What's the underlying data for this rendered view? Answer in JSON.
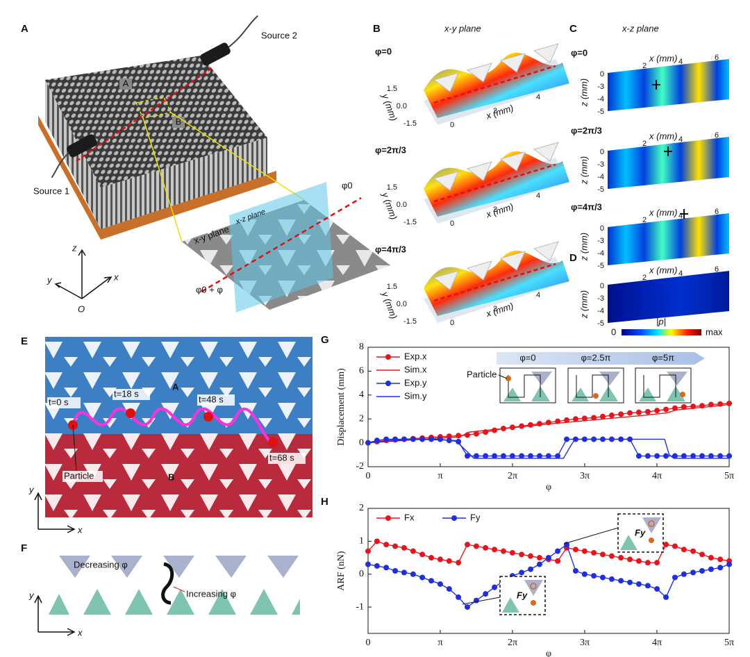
{
  "chart_data": [
    {
      "type": "line",
      "panel": "G",
      "ylabel": "Displacement (mm)",
      "xlabel": "φ",
      "xlim": [
        0,
        15.708
      ],
      "ylim": [
        -2,
        8
      ],
      "xticks": [
        0,
        {
          "value": 3.1416,
          "label": "π"
        },
        {
          "value": 6.2832,
          "label": "2π"
        },
        {
          "value": 9.4248,
          "label": "3π"
        },
        {
          "value": 12.5664,
          "label": "4π"
        },
        {
          "value": 15.708,
          "label": "5π"
        }
      ],
      "yticks": [
        -2,
        0,
        2,
        4,
        6,
        8
      ],
      "grid": false,
      "legend": "upper left",
      "series": [
        {
          "name": "Exp.x",
          "color": "#e8141c",
          "show_markers": true,
          "x": [
            0,
            0.39,
            0.79,
            1.18,
            1.57,
            1.96,
            2.36,
            2.75,
            3.14,
            3.53,
            3.93,
            4.32,
            4.71,
            5.11,
            5.5,
            5.89,
            6.28,
            6.68,
            7.07,
            7.46,
            7.85,
            8.25,
            8.64,
            9.03,
            9.42,
            9.82,
            10.21,
            10.6,
            11.0,
            11.39,
            11.78,
            12.17,
            12.57,
            12.96,
            13.35,
            13.74,
            14.14,
            14.53,
            14.92,
            15.32,
            15.71
          ],
          "values": [
            0,
            0.1,
            0.2,
            0.25,
            0.3,
            0.35,
            0.4,
            0.45,
            0.5,
            0.55,
            0.6,
            0.65,
            0.75,
            0.9,
            1.05,
            1.2,
            1.3,
            1.4,
            1.5,
            1.6,
            1.7,
            1.8,
            1.9,
            2.0,
            2.05,
            2.1,
            2.2,
            2.3,
            2.4,
            2.5,
            2.55,
            2.6,
            2.7,
            2.8,
            2.9,
            3.0,
            3.05,
            3.1,
            3.2,
            3.25,
            3.3
          ]
        },
        {
          "name": "Sim.x",
          "color": "#e8141c",
          "show_markers": false,
          "x": [
            0,
            4,
            4.4,
            8,
            12,
            13,
            13.4,
            15.71
          ],
          "values": [
            0,
            0.5,
            0.9,
            1.6,
            2.3,
            2.5,
            2.75,
            3.2
          ]
        },
        {
          "name": "Exp.y",
          "color": "#1f2fe0",
          "show_markers": true,
          "x": [
            0,
            0.39,
            0.79,
            1.18,
            1.57,
            1.96,
            2.36,
            2.75,
            3.14,
            3.53,
            3.93,
            4.32,
            4.71,
            5.11,
            5.5,
            5.89,
            6.28,
            6.68,
            7.07,
            7.46,
            7.85,
            8.25,
            8.64,
            9.03,
            9.42,
            9.82,
            10.21,
            10.6,
            11.0,
            11.39,
            11.78,
            12.17,
            12.57,
            12.96,
            13.35,
            13.74,
            14.14,
            14.53,
            14.92,
            15.32,
            15.71
          ],
          "values": [
            0,
            0.2,
            0.3,
            0.3,
            0.3,
            0.3,
            0.3,
            0.3,
            0.3,
            0.2,
            0.1,
            -1.1,
            -1.1,
            -1.1,
            -1.1,
            -1.1,
            -1.1,
            -1.1,
            -1.1,
            -1.1,
            -1.1,
            -1.1,
            0.3,
            0.3,
            0.3,
            0.3,
            0.3,
            0.3,
            0.3,
            0.3,
            -1.1,
            -1.1,
            -1.1,
            -1.1,
            -1.1,
            -1.1,
            -1.1,
            -1.1,
            -1.1,
            -1.1,
            -1.1
          ]
        },
        {
          "name": "Sim.y",
          "color": "#1f2fe0",
          "show_markers": false,
          "x": [
            0,
            2,
            3.8,
            4.4,
            4.6,
            8.5,
            8.8,
            9.0,
            12.9,
            13.1,
            13.3,
            15.71
          ],
          "values": [
            0,
            0.3,
            0.2,
            -0.9,
            -1.3,
            -1.3,
            -0.3,
            0.3,
            0.3,
            -1.0,
            -1.3,
            -1.3
          ]
        }
      ],
      "inset": {
        "states": [
          "φ=0",
          "φ=2.5π",
          "φ=5π"
        ],
        "particle": "Particle"
      }
    },
    {
      "type": "line",
      "panel": "H",
      "ylabel": "ARF (nN)",
      "xlabel": "φ",
      "xlim": [
        0,
        15.708
      ],
      "ylim": [
        -1.8,
        2
      ],
      "xticks": [
        0,
        {
          "value": 3.1416,
          "label": "π"
        },
        {
          "value": 6.2832,
          "label": "2π"
        },
        {
          "value": 9.4248,
          "label": "3π"
        },
        {
          "value": 12.5664,
          "label": "4π"
        },
        {
          "value": 15.708,
          "label": "5π"
        }
      ],
      "yticks": [
        -1,
        0,
        1,
        2
      ],
      "grid": false,
      "legend": "upper left",
      "legend_columns": 2,
      "series": [
        {
          "name": "Fx",
          "color": "#e8141c",
          "show_markers": true,
          "x": [
            0,
            0.39,
            0.79,
            1.18,
            1.57,
            1.96,
            2.36,
            2.75,
            3.14,
            3.53,
            3.93,
            4.32,
            4.71,
            5.11,
            5.5,
            5.89,
            6.28,
            6.68,
            7.07,
            7.46,
            7.85,
            8.25,
            8.64,
            9.03,
            9.42,
            9.82,
            10.21,
            10.6,
            11.0,
            11.39,
            11.78,
            12.17,
            12.57,
            12.96,
            13.35,
            13.74,
            14.14,
            14.53,
            14.92,
            15.32,
            15.71
          ],
          "values": [
            0.7,
            1.0,
            0.9,
            0.85,
            0.8,
            0.7,
            0.6,
            0.5,
            0.45,
            0.4,
            0.35,
            0.9,
            0.85,
            0.8,
            0.75,
            0.7,
            0.65,
            0.6,
            0.55,
            0.5,
            0.45,
            0.4,
            0.8,
            0.75,
            0.7,
            0.65,
            0.6,
            0.55,
            0.5,
            0.45,
            0.4,
            0.35,
            0.35,
            0.9,
            0.85,
            0.75,
            0.7,
            0.6,
            0.5,
            0.45,
            0.4
          ]
        },
        {
          "name": "Fy",
          "color": "#1f2fe0",
          "show_markers": true,
          "x": [
            0,
            0.39,
            0.79,
            1.18,
            1.57,
            1.96,
            2.36,
            2.75,
            3.14,
            3.53,
            3.93,
            4.32,
            4.71,
            5.11,
            5.5,
            5.89,
            6.28,
            6.68,
            7.07,
            7.46,
            7.85,
            8.25,
            8.64,
            9.03,
            9.42,
            9.82,
            10.21,
            10.6,
            11.0,
            11.39,
            11.78,
            12.17,
            12.57,
            12.96,
            13.35,
            13.74,
            14.14,
            14.53,
            14.92,
            15.32,
            15.71
          ],
          "values": [
            0.3,
            0.25,
            0.2,
            0.1,
            0.05,
            0,
            -0.1,
            -0.2,
            -0.3,
            -0.45,
            -0.7,
            -1.0,
            -0.8,
            -0.6,
            -0.4,
            -0.2,
            -0.05,
            0.05,
            0.15,
            0.3,
            0.5,
            0.7,
            0.9,
            0.1,
            0,
            -0.05,
            -0.1,
            -0.15,
            -0.2,
            -0.25,
            -0.3,
            -0.35,
            -0.45,
            -0.7,
            -0.1,
            0,
            0.05,
            0.1,
            0.15,
            0.2,
            0.3
          ]
        }
      ],
      "inset": {
        "force": "Fy"
      }
    }
  ],
  "panels": {
    "A": {
      "letter": "A",
      "source1": "Source 1",
      "source2": "Source 2",
      "box_a": "A",
      "box_b": "B",
      "xy_plane": "x-y plane",
      "xz_plane": "x-z plane",
      "phi0": "φ0",
      "phi0_plus": "φ0 + φ",
      "axes": [
        "z",
        "y",
        "x",
        "O"
      ]
    },
    "B": {
      "letter": "B",
      "title": "x-y plane",
      "phases": [
        "φ=0",
        "φ=2π/3",
        "φ=4π/3"
      ],
      "ylabel": "y (mm)",
      "xlabel": "x (mm)",
      "yticks": [
        "1.5",
        "0.0",
        "-1.5"
      ],
      "xticks": [
        "0",
        "2",
        "4"
      ]
    },
    "C": {
      "letter": "C",
      "title": "x-z plane",
      "phases": [
        "φ=0",
        "φ=2π/3",
        "φ=4π/3"
      ],
      "xlabel": "x (mm)",
      "zlabel": "z (mm)",
      "xticks": [
        "2",
        "4",
        "6"
      ],
      "zticks": [
        "0",
        "-3",
        "-4",
        "-5"
      ]
    },
    "D": {
      "letter": "D",
      "xlabel": "x (mm)",
      "zlabel": "z (mm)",
      "xticks": [
        "2",
        "4",
        "6"
      ],
      "zticks": [
        "0",
        "-3",
        "-4",
        "-5"
      ],
      "colorbar": {
        "label": "|p|",
        "min": "0",
        "max": "max"
      }
    },
    "E": {
      "letter": "E",
      "region_a": "A",
      "region_b": "B",
      "times": [
        "t=0 s",
        "t=18 s",
        "t=48 s",
        "t=68 s"
      ],
      "particle": "Particle",
      "axes": [
        "y",
        "x"
      ]
    },
    "F": {
      "letter": "F",
      "decreasing": "Decreasing φ",
      "increasing": "Increasing φ",
      "axes": [
        "y",
        "x"
      ]
    },
    "G": {
      "letter": "G"
    },
    "H": {
      "letter": "H"
    }
  }
}
